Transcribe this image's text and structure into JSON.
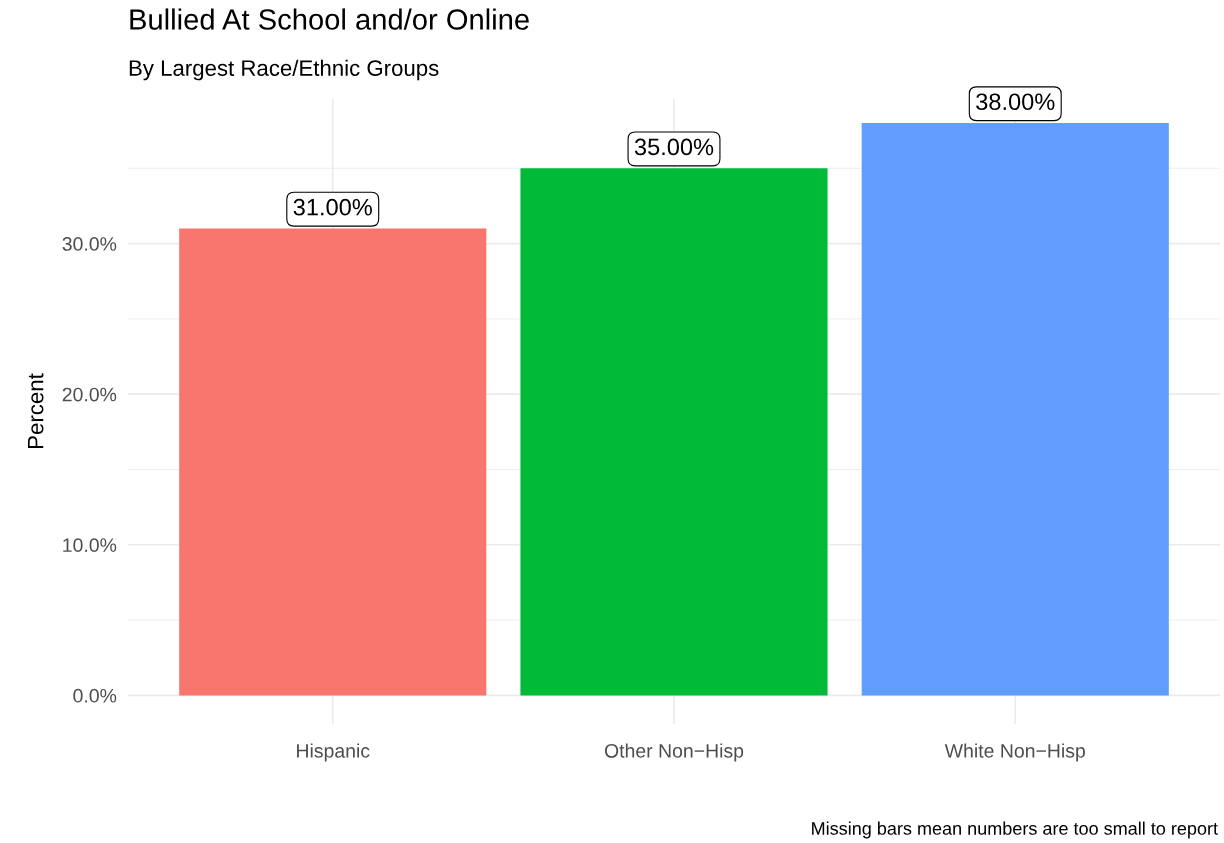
{
  "chart_data": {
    "type": "bar",
    "title": "Bullied At School and/or Online",
    "subtitle": "By Largest Race/Ethnic Groups",
    "ylabel": "Percent",
    "categories": [
      "Hispanic",
      "Other Non−Hisp",
      "White Non−Hisp"
    ],
    "values": [
      31,
      35,
      38
    ],
    "value_labels": [
      "31.00%",
      "35.00%",
      "38.00%"
    ],
    "colors": [
      "#f8766d",
      "#00ba38",
      "#619cff"
    ],
    "ylim": [
      -1.9,
      39.6
    ],
    "yticks": [
      {
        "value": 0,
        "label": "0.0%"
      },
      {
        "value": 10,
        "label": "10.0%"
      },
      {
        "value": 20,
        "label": "20.0%"
      },
      {
        "value": 30,
        "label": "30.0%"
      }
    ],
    "grid": true,
    "legend": false,
    "annotations": [
      "Missing bars mean numbers are too small to report"
    ]
  }
}
